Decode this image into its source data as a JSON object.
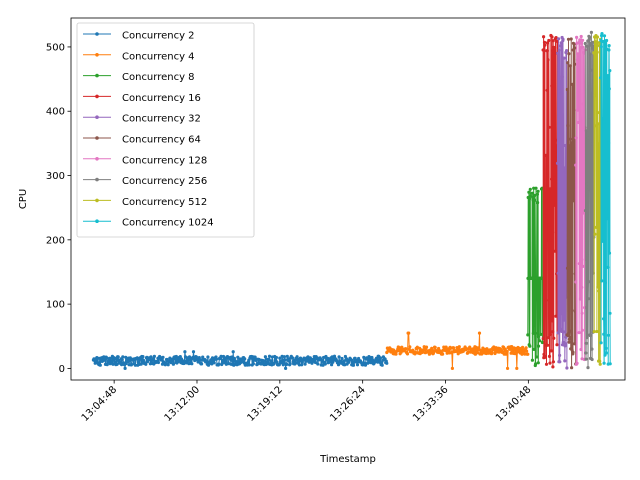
{
  "chart_data": {
    "type": "line",
    "title": "",
    "xlabel": "Timestamp",
    "ylabel": "CPU",
    "ylim": [
      -18,
      545
    ],
    "xlim": [
      "13:01:03",
      "13:49:12"
    ],
    "x_ticks": [
      "13:04:48",
      "13:12:00",
      "13:19:12",
      "13:26:24",
      "13:33:36",
      "13:40:48"
    ],
    "y_ticks": [
      0,
      100,
      200,
      300,
      400,
      500
    ],
    "grid": false,
    "legend_position": "upper-left",
    "series": [
      {
        "name": "Concurrency 2",
        "color": "#1f77b4",
        "start": "13:03:00",
        "end": "13:28:30",
        "base": 12,
        "amp": 14,
        "peak": 26,
        "kind": "flat"
      },
      {
        "name": "Concurrency 4",
        "color": "#ff7f0e",
        "start": "13:28:30",
        "end": "13:40:45",
        "base": 28,
        "amp": 12,
        "peak": 55,
        "kind": "flat"
      },
      {
        "name": "Concurrency 8",
        "color": "#2ca02c",
        "start": "13:40:45",
        "end": "13:42:05",
        "base": 140,
        "amp": 140,
        "peak": 282,
        "kind": "burst"
      },
      {
        "name": "Concurrency 16",
        "color": "#d62728",
        "start": "13:42:05",
        "end": "13:43:20",
        "base": 0,
        "amp": 520,
        "peak": 520,
        "kind": "burst"
      },
      {
        "name": "Concurrency 32",
        "color": "#9467bd",
        "start": "13:43:20",
        "end": "13:44:10",
        "base": 0,
        "amp": 518,
        "peak": 518,
        "kind": "burst"
      },
      {
        "name": "Concurrency 64",
        "color": "#8c564b",
        "start": "13:44:10",
        "end": "13:44:55",
        "base": 0,
        "amp": 519,
        "peak": 519,
        "kind": "burst"
      },
      {
        "name": "Concurrency 128",
        "color": "#e377c2",
        "start": "13:44:55",
        "end": "13:45:45",
        "base": 0,
        "amp": 517,
        "peak": 517,
        "kind": "burst"
      },
      {
        "name": "Concurrency 256",
        "color": "#7f7f7f",
        "start": "13:45:45",
        "end": "13:46:30",
        "base": 0,
        "amp": 524,
        "peak": 524,
        "kind": "burst"
      },
      {
        "name": "Concurrency 512",
        "color": "#bcbd22",
        "start": "13:46:30",
        "end": "13:47:05",
        "base": 0,
        "amp": 518,
        "peak": 518,
        "kind": "burst"
      },
      {
        "name": "Concurrency 1024",
        "color": "#17becf",
        "start": "13:47:05",
        "end": "13:47:55",
        "base": 0,
        "amp": 525,
        "peak": 525,
        "kind": "burst"
      }
    ]
  }
}
